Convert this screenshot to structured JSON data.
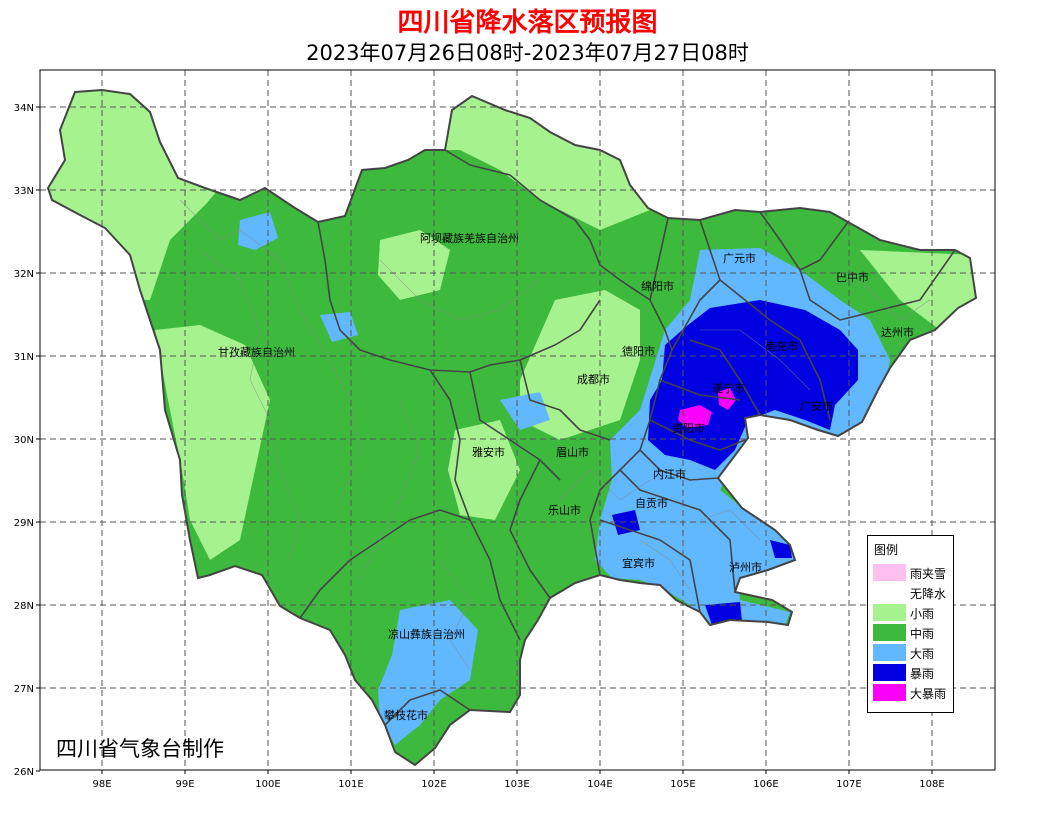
{
  "header": {
    "title": "四川省降水落区预报图",
    "subtitle": "2023年07月26日08时-2023年07月27日08时"
  },
  "footer": {
    "credit": "四川省气象台制作"
  },
  "axes": {
    "lat_labels": [
      "34N",
      "33N",
      "32N",
      "31N",
      "30N",
      "29N",
      "28N",
      "27N",
      "26N"
    ],
    "lon_labels": [
      "98E",
      "99E",
      "100E",
      "101E",
      "102E",
      "103E",
      "104E",
      "105E",
      "106E",
      "107E",
      "108E"
    ],
    "grid": true,
    "grid_style": "dashed"
  },
  "regions": [
    {
      "key": "aba",
      "label": "阿坝藏族羌族自治州"
    },
    {
      "key": "ganzi",
      "label": "甘孜藏族自治州"
    },
    {
      "key": "guangyuan",
      "label": "广元市"
    },
    {
      "key": "bazhong",
      "label": "巴中市"
    },
    {
      "key": "mianyang",
      "label": "绵阳市"
    },
    {
      "key": "dazhou",
      "label": "达州市"
    },
    {
      "key": "deyang",
      "label": "德阳市"
    },
    {
      "key": "nanchong",
      "label": "南充市"
    },
    {
      "key": "chengdu",
      "label": "成都市"
    },
    {
      "key": "suining",
      "label": "遂宁市"
    },
    {
      "key": "guangan",
      "label": "广安市"
    },
    {
      "key": "ziyang",
      "label": "资阳市"
    },
    {
      "key": "yaan",
      "label": "雅安市"
    },
    {
      "key": "meishan",
      "label": "眉山市"
    },
    {
      "key": "neijiang",
      "label": "内江市"
    },
    {
      "key": "zigong",
      "label": "自贡市"
    },
    {
      "key": "leshan",
      "label": "乐山市"
    },
    {
      "key": "yibin",
      "label": "宜宾市"
    },
    {
      "key": "luzhou",
      "label": "泸州市"
    },
    {
      "key": "liangshan",
      "label": "凉山彝族自治州"
    },
    {
      "key": "panzhihua",
      "label": "攀枝花市"
    }
  ],
  "legend": {
    "title": "图例",
    "items": [
      {
        "label": "雨夹雪",
        "color": "#ffbfef"
      },
      {
        "label": "无降水",
        "color": "#ffffff"
      },
      {
        "label": "小雨",
        "color": "#a6f28f"
      },
      {
        "label": "中雨",
        "color": "#3dba3d"
      },
      {
        "label": "大雨",
        "color": "#61b8ff"
      },
      {
        "label": "暴雨",
        "color": "#0000e1"
      },
      {
        "label": "大暴雨",
        "color": "#fa00fa"
      }
    ]
  },
  "colors": {
    "title": "#ff0000",
    "light_rain": "#a6f28f",
    "moderate_rain": "#3dba3d",
    "heavy_rain": "#61b8ff",
    "rainstorm": "#0000e1",
    "heavy_rainstorm": "#fa00fa",
    "boundary": "#444444"
  }
}
